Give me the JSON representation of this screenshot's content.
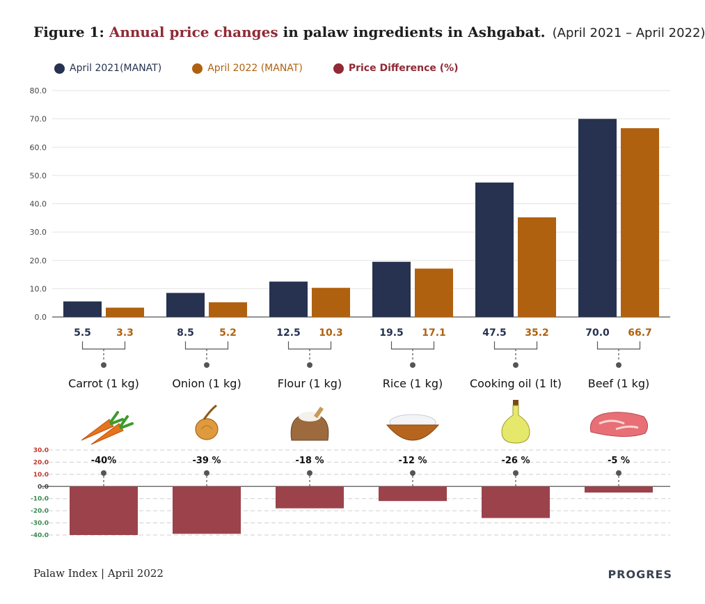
{
  "title": {
    "prefix": "Figure 1: ",
    "highlight": "Annual price changes",
    "rest": " in palaw ingredients in Ashgabat.",
    "period": "(April 2021 – April 2022)"
  },
  "legend": [
    {
      "label": "April 2021(MANAT)",
      "color": "#26324f"
    },
    {
      "label": "April 2022 (MANAT)",
      "color": "#b0610f"
    },
    {
      "label": "Price Difference (%)",
      "color": "#8f2a36"
    }
  ],
  "colors": {
    "a2021": "#26324f",
    "a2022": "#b0610f",
    "diff": "#9c424b",
    "pos_tick": "#c0392b",
    "neg_tick": "#3c8a4f"
  },
  "chart_data": [
    {
      "type": "bar",
      "categories": [
        "Carrot (1 kg)",
        "Onion (1 kg)",
        "Flour (1 kg)",
        "Rice (1 kg)",
        "Cooking oil (1 lt)",
        "Beef (1 kg)"
      ],
      "series": [
        {
          "name": "April 2021(MANAT)",
          "values": [
            5.5,
            8.5,
            12.5,
            19.5,
            47.5,
            70.0
          ],
          "labels": [
            "5.5",
            "8.5",
            "12.5",
            "19.5",
            "47.5",
            "70.0"
          ]
        },
        {
          "name": "April 2022 (MANAT)",
          "values": [
            3.3,
            5.2,
            10.3,
            17.1,
            35.2,
            66.7
          ],
          "labels": [
            "3.3",
            "5.2",
            "10.3",
            "17.1",
            "35.2",
            "66.7"
          ]
        }
      ],
      "yticks": [
        "80.0",
        "70.0",
        "60.0",
        "50.0",
        "40.0",
        "30.0",
        "20.0",
        "10.0",
        "0.0"
      ],
      "ylim": [
        0,
        80
      ],
      "grid": true
    },
    {
      "type": "bar",
      "categories": [
        "Carrot (1 kg)",
        "Onion (1 kg)",
        "Flour (1 kg)",
        "Rice (1 kg)",
        "Cooking oil (1 lt)",
        "Beef (1 kg)"
      ],
      "series": [
        {
          "name": "Price Difference (%)",
          "values": [
            -40,
            -39,
            -18,
            -12,
            -26,
            -5
          ],
          "labels": [
            "-40%",
            "-39 %",
            "-18 %",
            "-12 %",
            "-26 %",
            "-5 %"
          ]
        }
      ],
      "yticks": [
        "30.0",
        "20.0",
        "10.0",
        "0.0",
        "-10.0",
        "-20.0",
        "-30.0",
        "-40.0"
      ],
      "ylim": [
        -40,
        30
      ],
      "grid": true
    }
  ],
  "icons": [
    "carrot-icon",
    "onion-icon",
    "flour-sack-icon",
    "rice-bowl-icon",
    "oil-bottle-icon",
    "beef-steak-icon"
  ],
  "footer": "Palaw Index | April 2022",
  "brand": "PROGRES"
}
